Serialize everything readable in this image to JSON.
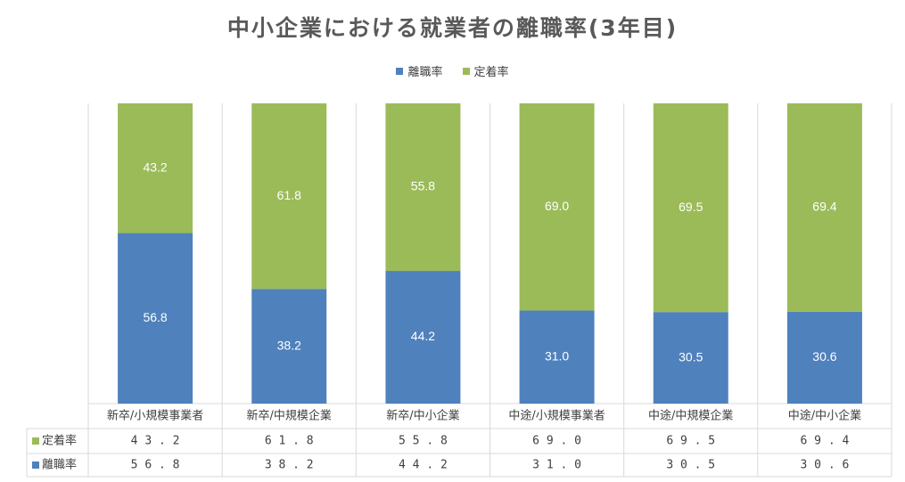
{
  "chart_data": {
    "type": "bar",
    "stacked": true,
    "title": "中小企業における就業者の離職率(3年目)",
    "categories": [
      "新卒/小規模事業者",
      "新卒/中規模企業",
      "新卒/中小企業",
      "中途/小規模事業者",
      "中途/中規模企業",
      "中途/中小企業"
    ],
    "series": [
      {
        "name": "離職率",
        "color": "#4F81BD",
        "values": [
          56.8,
          38.2,
          44.2,
          31.0,
          30.5,
          30.6
        ]
      },
      {
        "name": "定着率",
        "color": "#9BBB59",
        "values": [
          43.2,
          61.8,
          55.8,
          69.0,
          69.5,
          69.4
        ]
      }
    ],
    "ylim": [
      0,
      100
    ],
    "legend_position": "top",
    "data_table": true,
    "grid": false
  }
}
